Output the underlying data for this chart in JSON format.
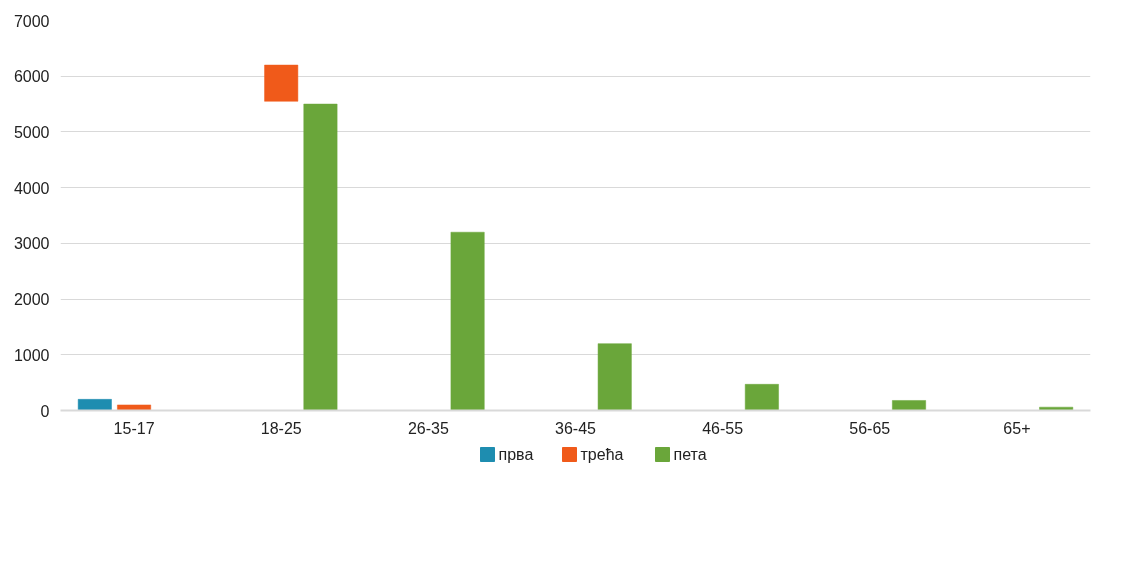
{
  "chart_data": {
    "type": "bar",
    "categories": [
      "15-17",
      "18-25",
      "26-35",
      "36-45",
      "46-55",
      "56-65",
      "65+"
    ],
    "series": [
      {
        "name": "прва",
        "color": "#1e8db0",
        "values": [
          200,
          null,
          null,
          null,
          null,
          null,
          null
        ]
      },
      {
        "name": "трећа",
        "color": "#f05a1a",
        "values": [
          100,
          650,
          null,
          null,
          null,
          null,
          null
        ],
        "base": [
          0,
          5550,
          null,
          null,
          null,
          null,
          null
        ]
      },
      {
        "name": "пета",
        "color": "#6aa63a",
        "values": [
          null,
          5500,
          3200,
          1200,
          470,
          180,
          60
        ]
      }
    ],
    "ylim": [
      0,
      7000
    ],
    "yticks": [
      0,
      1000,
      2000,
      3000,
      4000,
      5000,
      6000,
      7000
    ],
    "grid": "y",
    "legend": "bottom"
  }
}
